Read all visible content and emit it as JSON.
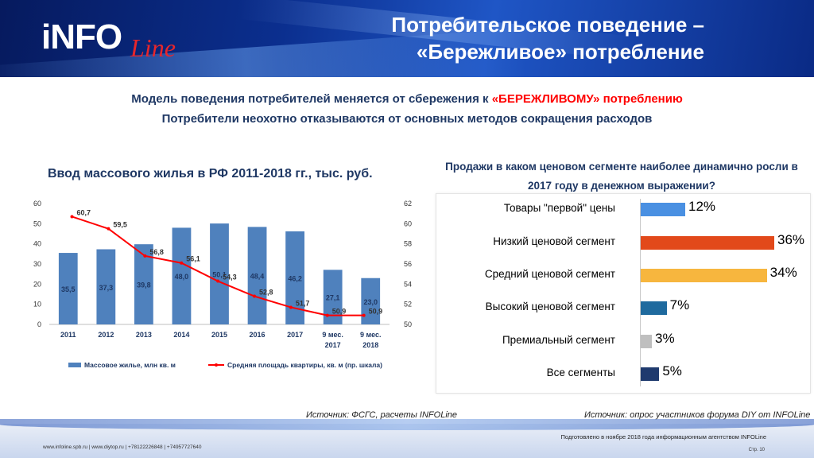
{
  "header": {
    "logo_main": "iNFO",
    "logo_sub": "Line",
    "title_line1": "Потребительское поведение –",
    "title_line2": "«Бережливое» потребление"
  },
  "intro": {
    "line1_part1": "Модель поведения потребителей меняется от сбережения к ",
    "line1_highlight": "«БЕРЕЖЛИВОМУ» потреблению",
    "line2": "Потребители неохотно отказываются от основных методов сокращения расходов"
  },
  "chart_data": [
    {
      "type": "bar",
      "title": "Ввод массового жилья в РФ 2011-2018 гг., тыс. руб.",
      "categories": [
        "2011",
        "2012",
        "2013",
        "2014",
        "2015",
        "2016",
        "2017",
        "9 мес. 2017",
        "9 мес. 2018"
      ],
      "series": [
        {
          "name": "Массовое жилье, млн кв. м",
          "type": "bar",
          "axis": "left",
          "color": "#4f81bd",
          "values": [
            35.5,
            37.3,
            39.8,
            48.0,
            50.1,
            48.4,
            46.2,
            27.1,
            23.0
          ],
          "labels": [
            "35,5",
            "37,3",
            "39,8",
            "48,0",
            "50,1",
            "48,4",
            "46,2",
            "27,1",
            "23,0"
          ]
        },
        {
          "name": "Средняя площадь квартиры, кв. м (пр. шкала)",
          "type": "line",
          "axis": "right",
          "color": "#ff0000",
          "values": [
            60.7,
            59.5,
            56.8,
            56.1,
            54.3,
            52.8,
            51.7,
            50.9,
            50.9
          ],
          "labels": [
            "60,7",
            "59,5",
            "56,8",
            "56,1",
            "54,3",
            "52,8",
            "51,7",
            "50,9",
            "50,9"
          ]
        }
      ],
      "ylim_left": [
        0,
        60
      ],
      "yticks_left": [
        "0",
        "10",
        "20",
        "30",
        "40",
        "50",
        "60"
      ],
      "ylim_right": [
        50,
        62
      ],
      "yticks_right": [
        "50",
        "52",
        "54",
        "56",
        "58",
        "60",
        "62"
      ],
      "legend": "bottom",
      "source": "Источник: ФСГС, расчеты INFOLine"
    },
    {
      "type": "bar",
      "orientation": "horizontal",
      "title": "Продажи в каком ценовом  сегменте наиболее динамично росли в 2017 году в денежном выражении?",
      "categories": [
        "Товары \"первой\" цены",
        "Низкий ценовой сегмент",
        "Средний ценовой сегмент",
        "Высокий ценовой сегмент",
        "Премиальный сегмент",
        "Все сегменты"
      ],
      "values": [
        12,
        36,
        34,
        7,
        3,
        5
      ],
      "labels": [
        "12%",
        "36%",
        "34%",
        "7%",
        "3%",
        "5%"
      ],
      "colors": [
        "#4a90e2",
        "#e2491a",
        "#f7b63e",
        "#1f6a9e",
        "#bfbfbf",
        "#1f3a6e"
      ],
      "xlim": [
        0,
        36
      ],
      "source": "Источник: опрос участников форума DIY от INFOLine"
    }
  ],
  "footer": {
    "contacts": "www.infoline.spb.ru  |  www.diytop.ru  |  +78122226848  |  +74957727640",
    "prepared": "Подготовлено в ноябре 2018 года информационным агентством INFOLine",
    "page": "Стр. 10"
  }
}
